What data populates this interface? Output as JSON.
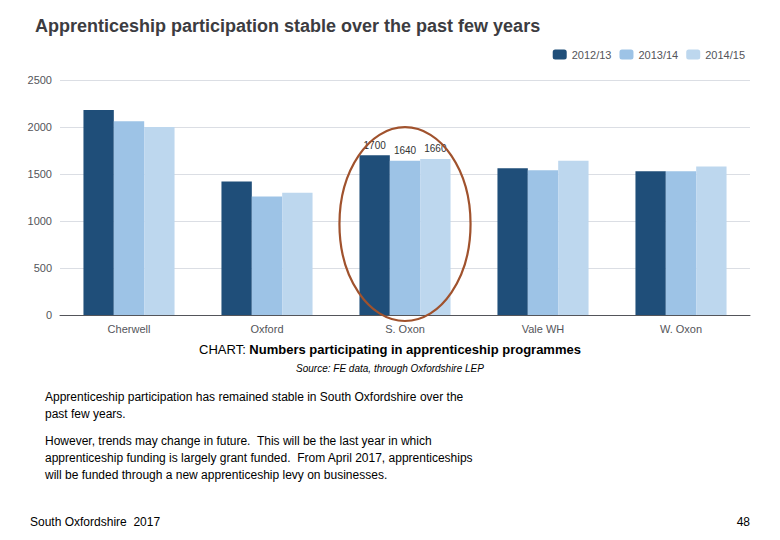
{
  "chart_data": {
    "type": "bar",
    "title": "Apprenticeship participation stable over the past few years",
    "categories": [
      "Cherwell",
      "Oxford",
      "S. Oxon",
      "Vale WH",
      "W. Oxon"
    ],
    "series": [
      {
        "name": "2012/13",
        "color": "#1F4E79",
        "values": [
          2180,
          1420,
          1700,
          1560,
          1530
        ]
      },
      {
        "name": "2013/14",
        "color": "#9DC3E6",
        "values": [
          2060,
          1260,
          1640,
          1540,
          1530
        ]
      },
      {
        "name": "2014/15",
        "color": "#BDD7EE",
        "values": [
          2000,
          1300,
          1660,
          1640,
          1580
        ]
      }
    ],
    "ylim": [
      0,
      2500
    ],
    "yticks": [
      0,
      500,
      1000,
      1500,
      2000,
      2500
    ],
    "grid": true,
    "legend": "upper right",
    "annotations": [
      {
        "category": "S. Oxon",
        "series": "2012/13",
        "text": "1700"
      },
      {
        "category": "S. Oxon",
        "series": "2013/14",
        "text": "1640"
      },
      {
        "category": "S. Oxon",
        "series": "2014/15",
        "text": "1660"
      }
    ],
    "highlight": {
      "category": "S. Oxon",
      "color": "#A0522D"
    },
    "caption_normal": "CHART: ",
    "caption_bold": "Numbers participating in apprenticeship programmes",
    "source": "Source: FE data, through Oxfordshire LEP",
    "notes": [
      "Apprenticeship participation has remained stable in South Oxfordshire over the\npast few years.",
      "However, trends may change in future.  This will be the last year in which\napprenticeship funding is largely grant funded.  From April 2017, apprenticeships\nwill be funded through a new apprenticeship levy on businesses."
    ],
    "footer_left": "South Oxfordshire  2017",
    "footer_right": "48"
  }
}
